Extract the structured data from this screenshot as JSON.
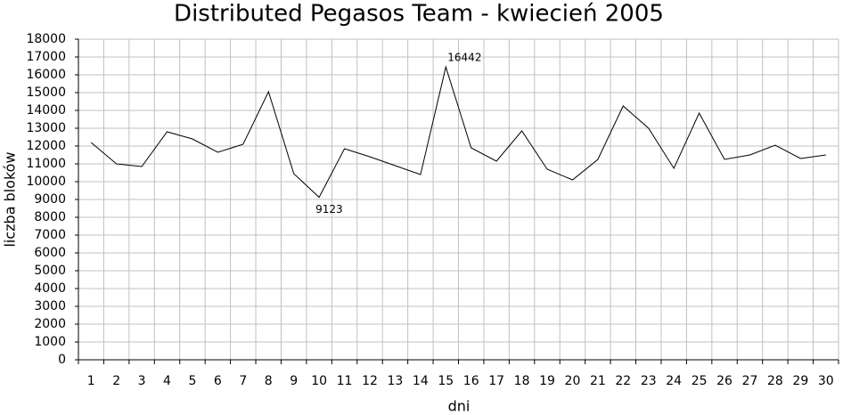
{
  "chart_data": {
    "type": "line",
    "title": "Distributed Pegasos Team - kwiecień 2005",
    "x_label": "dni",
    "y_label": "liczba bloków",
    "categories": [
      "1",
      "2",
      "3",
      "4",
      "5",
      "6",
      "7",
      "8",
      "9",
      "10",
      "11",
      "12",
      "13",
      "14",
      "15",
      "16",
      "17",
      "18",
      "19",
      "20",
      "21",
      "22",
      "23",
      "24",
      "25",
      "26",
      "27",
      "28",
      "29",
      "30"
    ],
    "series": [
      {
        "name": "liczba bloków",
        "color": "#000000",
        "values": [
          12200,
          11000,
          10850,
          12800,
          12400,
          11650,
          12100,
          15050,
          10450,
          9123,
          11850,
          11400,
          10900,
          10400,
          16442,
          11900,
          11150,
          12850,
          10700,
          10100,
          11250,
          14250,
          13000,
          10750,
          13850,
          11250,
          11500,
          12050,
          11300,
          11500
        ]
      }
    ],
    "ylim": [
      0,
      18000
    ],
    "yticks": [
      0,
      1000,
      2000,
      3000,
      4000,
      5000,
      6000,
      7000,
      8000,
      9000,
      10000,
      11000,
      12000,
      13000,
      14000,
      15000,
      16000,
      17000,
      18000
    ],
    "grid": true
  }
}
